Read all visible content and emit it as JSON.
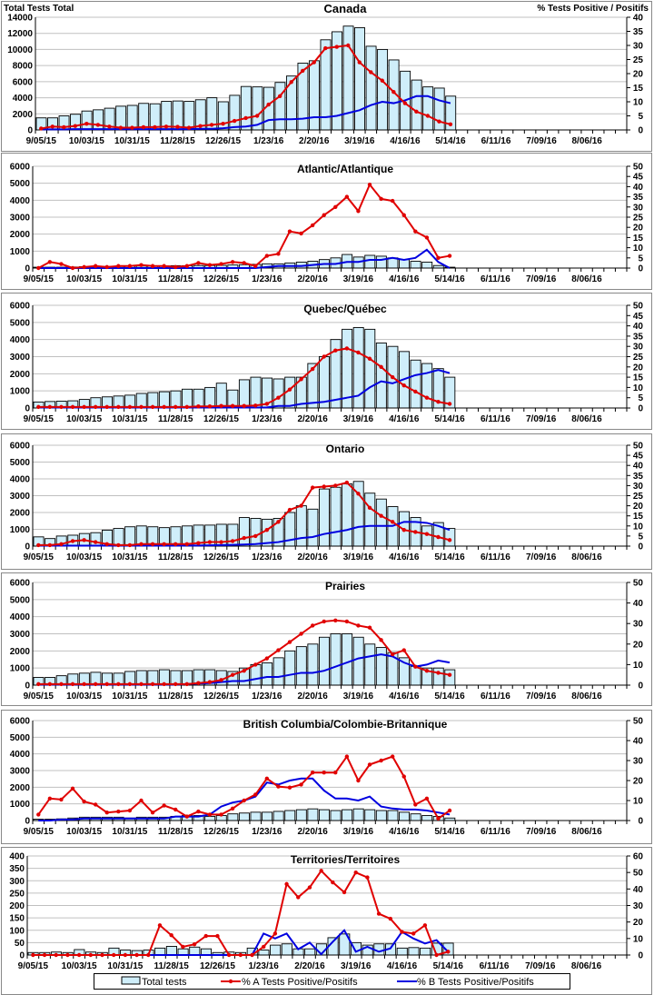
{
  "colors": {
    "bar_fill": "#cfeefa",
    "bar_stroke": "#000000",
    "series_a": "#e00000",
    "series_b": "#0000e0",
    "grid": "#c0c0c0"
  },
  "left_axis_title": "Total Tests Total",
  "right_axis_title": "% Tests Positive / Positifs",
  "legend": {
    "bars": "Total tests",
    "a": "% A Tests Positive/Positifs",
    "b": "% B Tests Positive/Positifs"
  },
  "chart_data": [
    {
      "type": "bar+line",
      "title": "Canada",
      "x_ticks": [
        "9/05/15",
        "10/03/15",
        "10/31/15",
        "11/28/15",
        "12/26/15",
        "1/23/16",
        "2/20/16",
        "3/19/16",
        "4/16/16",
        "5/14/16",
        "6/11/16",
        "7/09/16",
        "8/06/16"
      ],
      "weeks": 52,
      "ylim": [
        0,
        14000
      ],
      "ystep": 2000,
      "y2lim": [
        0,
        40
      ],
      "y2step": 5,
      "total_tests": [
        1500,
        1500,
        1750,
        1950,
        2350,
        2500,
        2700,
        2950,
        3050,
        3300,
        3250,
        3550,
        3600,
        3550,
        3750,
        4000,
        3500,
        4300,
        5400,
        5350,
        5300,
        5900,
        6700,
        8300,
        8600,
        11200,
        12200,
        12900,
        12700,
        10400,
        10000,
        8700,
        7300,
        6200,
        5350,
        5200,
        4200
      ],
      "pct_a": [
        0.5,
        1.2,
        1,
        1.4,
        2.2,
        1.8,
        1.2,
        0.8,
        0.8,
        1,
        1,
        1.2,
        1.1,
        0.8,
        1.4,
        1.8,
        2.2,
        3.2,
        4.2,
        5,
        9,
        12,
        17,
        21,
        24,
        29,
        29.5,
        30,
        24,
        20.5,
        17.5,
        13.5,
        9.5,
        6.5,
        5,
        3,
        2
      ],
      "pct_b": [
        0.2,
        0.2,
        0.2,
        0.3,
        0.3,
        0.3,
        0.3,
        0.3,
        0.3,
        0.3,
        0.3,
        0.3,
        0.3,
        0.3,
        0.4,
        0.4,
        0.6,
        1,
        1.2,
        1.8,
        3.5,
        3.8,
        3.8,
        4,
        4.5,
        4.5,
        5,
        6,
        7,
        8.8,
        10,
        9.5,
        10.5,
        12,
        12,
        10.5,
        9.5
      ]
    },
    {
      "type": "bar+line",
      "title": "Atlantic/Atlantique",
      "ylim": [
        0,
        6000
      ],
      "ystep": 1000,
      "y2lim": [
        0,
        50
      ],
      "y2step": 5,
      "total_tests": [
        50,
        50,
        50,
        60,
        80,
        80,
        90,
        100,
        110,
        120,
        130,
        130,
        140,
        140,
        150,
        150,
        160,
        180,
        200,
        220,
        250,
        250,
        300,
        350,
        400,
        500,
        600,
        800,
        650,
        750,
        700,
        600,
        500,
        400,
        350,
        150,
        50
      ],
      "pct_a": [
        0,
        3,
        2,
        0,
        0.5,
        1,
        0.5,
        1,
        1,
        1.5,
        1,
        1,
        0.5,
        1,
        2.5,
        1.5,
        2,
        3,
        2.5,
        1,
        6,
        7,
        18,
        17,
        21,
        26,
        30,
        35,
        28,
        41,
        34,
        33,
        26,
        18,
        15,
        5,
        6
      ],
      "pct_b": [
        0,
        0,
        0,
        0,
        0,
        0,
        0,
        0,
        0,
        0,
        0,
        0,
        0,
        0,
        0,
        0,
        0,
        0,
        0,
        0,
        0.5,
        1,
        1,
        1,
        1.5,
        2,
        2,
        3,
        3,
        4,
        4,
        5,
        4,
        5,
        9,
        3,
        0
      ]
    },
    {
      "type": "bar+line",
      "title": "Quebec/Québec",
      "ylim": [
        0,
        6000
      ],
      "ystep": 1000,
      "y2lim": [
        0,
        50
      ],
      "y2step": 5,
      "total_tests": [
        350,
        380,
        400,
        420,
        500,
        600,
        650,
        700,
        750,
        850,
        900,
        950,
        1000,
        1100,
        1100,
        1200,
        1450,
        1050,
        1650,
        1800,
        1750,
        1700,
        1800,
        1800,
        2600,
        3000,
        4000,
        4600,
        4700,
        4600,
        3800,
        3600,
        3300,
        2800,
        2600,
        2300,
        1800
      ],
      "pct_a": [
        0.5,
        0.5,
        0.5,
        0.5,
        0.5,
        0.5,
        0.5,
        0.5,
        0.5,
        0.5,
        0.5,
        0.5,
        0.5,
        0.5,
        0.8,
        0.8,
        1,
        1,
        1,
        1.2,
        2,
        5,
        9,
        14,
        19,
        25,
        28,
        29,
        27,
        24,
        20,
        15,
        11,
        8,
        5,
        3,
        2
      ],
      "pct_b": [
        0.2,
        0.2,
        0.2,
        0.2,
        0.2,
        0.2,
        0.2,
        0.2,
        0.2,
        0.2,
        0.2,
        0.2,
        0.2,
        0.2,
        0.2,
        0.2,
        0.2,
        0.2,
        0.2,
        0.2,
        0.3,
        1,
        1,
        2,
        2.5,
        3,
        4,
        5,
        6,
        10,
        13,
        12,
        14,
        16,
        17,
        18.5,
        17
      ]
    },
    {
      "type": "bar+line",
      "title": "Ontario",
      "ylim": [
        0,
        6000
      ],
      "ystep": 1000,
      "y2lim": [
        0,
        50
      ],
      "y2step": 5,
      "total_tests": [
        550,
        450,
        600,
        650,
        750,
        800,
        950,
        1050,
        1150,
        1200,
        1150,
        1100,
        1150,
        1200,
        1250,
        1250,
        1300,
        1300,
        1700,
        1650,
        1600,
        1650,
        2000,
        2400,
        2200,
        3400,
        3500,
        3700,
        3850,
        3150,
        2800,
        2350,
        2050,
        1700,
        1200,
        1400,
        1050
      ],
      "pct_a": [
        0.5,
        0.5,
        1,
        2.5,
        3,
        2,
        1,
        0.5,
        0.5,
        1,
        1,
        1,
        1,
        1,
        1.5,
        2,
        2,
        2.5,
        4,
        5,
        8,
        12,
        18,
        20,
        29,
        29.5,
        30,
        31.5,
        26,
        19,
        15,
        12,
        8,
        7,
        6,
        4.5,
        3
      ],
      "pct_b": [
        0.2,
        0.2,
        0.2,
        0.2,
        0.2,
        0.2,
        0.2,
        0.2,
        0.2,
        0.2,
        0.2,
        0.2,
        0.2,
        0.3,
        0.3,
        0.4,
        0.5,
        0.6,
        0.8,
        1,
        1.5,
        2,
        3,
        4,
        4.5,
        6,
        7,
        8,
        9.5,
        10,
        10,
        10,
        12,
        12,
        11.5,
        10,
        8
      ]
    },
    {
      "type": "bar+line",
      "title": "Prairies",
      "ylim": [
        0,
        6000
      ],
      "ystep": 1000,
      "y2lim": [
        0,
        50
      ],
      "y2step": 10,
      "total_tests": [
        450,
        450,
        550,
        650,
        700,
        750,
        700,
        700,
        800,
        850,
        850,
        900,
        850,
        850,
        900,
        900,
        850,
        800,
        1000,
        1200,
        1300,
        1600,
        2000,
        2250,
        2400,
        2800,
        3000,
        3000,
        2800,
        2400,
        2200,
        1900,
        1600,
        1100,
        1000,
        1000,
        900
      ],
      "pct_a": [
        0.5,
        0.5,
        0.5,
        0.5,
        0.5,
        0.5,
        0.5,
        0.5,
        0.5,
        0.5,
        0.5,
        0.5,
        0.5,
        0.5,
        1,
        1.5,
        2.5,
        5,
        7,
        10,
        13,
        17,
        21,
        25,
        29,
        31,
        31.5,
        31,
        29,
        28,
        22,
        15,
        17,
        9,
        7,
        6,
        5
      ],
      "pct_b": [
        0.3,
        0.3,
        0.3,
        0.3,
        0.3,
        0.3,
        0.3,
        0.3,
        0.3,
        0.3,
        0.3,
        0.3,
        0.3,
        0.5,
        0.8,
        1,
        1.5,
        2,
        2,
        3,
        4,
        4,
        5,
        6,
        6,
        7,
        9,
        11,
        13,
        14,
        15,
        14,
        11,
        9,
        10,
        12,
        11
      ]
    },
    {
      "type": "bar+line",
      "title": "British Columbia/Colombie-Britannique",
      "ylim": [
        0,
        6000
      ],
      "ystep": 1000,
      "y2lim": [
        0,
        50
      ],
      "y2step": 10,
      "total_tests": [
        80,
        80,
        100,
        150,
        200,
        200,
        200,
        200,
        150,
        200,
        200,
        200,
        250,
        300,
        300,
        250,
        300,
        400,
        450,
        500,
        500,
        550,
        600,
        650,
        700,
        650,
        600,
        650,
        700,
        650,
        600,
        600,
        500,
        400,
        300,
        250,
        150
      ],
      "pct_a": [
        3,
        11,
        10.5,
        16,
        9.5,
        8,
        4,
        4.5,
        5,
        10,
        4,
        7.5,
        5.5,
        2,
        4.5,
        3,
        3,
        6,
        10,
        13,
        21,
        17,
        16.5,
        18,
        24,
        24,
        24,
        32,
        20,
        28,
        30,
        32,
        22,
        8,
        11,
        1,
        5
      ],
      "pct_b": [
        0,
        0,
        0.5,
        0.5,
        1,
        1,
        1,
        1,
        1,
        1,
        1,
        1,
        2,
        2,
        2,
        3,
        7,
        9,
        10,
        12,
        19,
        18,
        20,
        21,
        21,
        15,
        11,
        11,
        10,
        12,
        7,
        6,
        5.5,
        5.5,
        5,
        4,
        3
      ]
    },
    {
      "type": "bar+line",
      "title": "Territories/Territoires",
      "ylim": [
        0,
        400
      ],
      "ystep": 50,
      "y2lim": [
        0,
        60
      ],
      "y2step": 10,
      "total_tests": [
        10,
        10,
        12,
        10,
        22,
        12,
        10,
        28,
        20,
        18,
        20,
        28,
        35,
        25,
        32,
        25,
        10,
        12,
        10,
        28,
        20,
        40,
        45,
        25,
        25,
        45,
        70,
        85,
        50,
        40,
        45,
        45,
        28,
        30,
        28,
        48,
        48
      ],
      "pct_a": [
        0,
        0,
        0,
        0,
        0,
        0,
        0,
        0,
        0,
        0,
        0,
        18,
        12,
        5,
        6.5,
        11.5,
        11.5,
        0,
        0,
        0,
        5,
        13,
        43,
        35,
        41,
        51,
        44,
        38,
        50,
        47,
        25,
        22,
        14,
        13,
        18,
        0,
        2
      ],
      "pct_b": [
        0,
        0,
        0,
        0,
        0,
        0,
        0,
        0,
        0,
        0,
        0,
        0,
        0,
        0,
        0,
        0,
        0,
        0,
        0,
        0,
        13,
        10,
        13,
        3.5,
        7.5,
        0.5,
        8,
        15,
        2,
        5,
        2,
        4,
        14,
        10,
        7,
        9,
        2
      ]
    }
  ]
}
